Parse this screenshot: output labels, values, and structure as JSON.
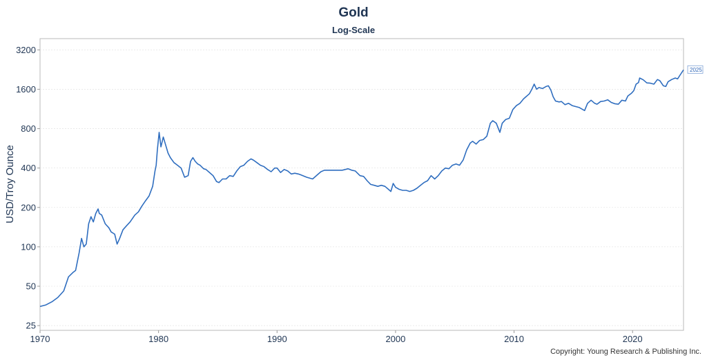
{
  "chart_data": {
    "type": "line",
    "title": "Gold",
    "subtitle": "Log-Scale",
    "xlabel": "",
    "ylabel": "USD/Troy Ounce",
    "y_scale": "log",
    "ylim": [
      23,
      3900
    ],
    "xlim": [
      1970,
      2024.3
    ],
    "y_ticks": [
      25,
      50,
      100,
      200,
      400,
      800,
      1600,
      3200
    ],
    "y_tick_labels": [
      "25",
      "50",
      "100",
      "200",
      "400",
      "800",
      "1600",
      "3200"
    ],
    "x_ticks": [
      1970,
      1980,
      1990,
      2000,
      2010,
      2020
    ],
    "x_tick_labels": [
      "1970",
      "1980",
      "1990",
      "2000",
      "2010",
      "2020"
    ],
    "grid": true,
    "end_label": "2025",
    "line_color": "#2e6dbf",
    "series": [
      {
        "x": [
          1970.0,
          1970.5,
          1971.0,
          1971.5,
          1972.0,
          1972.4,
          1972.8,
          1973.0,
          1973.3,
          1973.5,
          1973.7,
          1973.9,
          1974.1,
          1974.3,
          1974.5,
          1974.7,
          1974.9,
          1975.0,
          1975.2,
          1975.5,
          1975.8,
          1976.0,
          1976.3,
          1976.5,
          1976.7,
          1977.0,
          1977.3,
          1977.6,
          1978.0,
          1978.3,
          1978.6,
          1978.9,
          1979.2,
          1979.5,
          1979.7,
          1979.8,
          1979.9,
          1980.05,
          1980.2,
          1980.4,
          1980.6,
          1980.8,
          1981.0,
          1981.3,
          1981.6,
          1981.9,
          1982.2,
          1982.5,
          1982.7,
          1982.9,
          1983.1,
          1983.3,
          1983.5,
          1983.8,
          1984.0,
          1984.3,
          1984.6,
          1984.9,
          1985.1,
          1985.4,
          1985.7,
          1986.0,
          1986.3,
          1986.6,
          1986.9,
          1987.2,
          1987.5,
          1987.8,
          1988.0,
          1988.3,
          1988.6,
          1988.9,
          1989.2,
          1989.5,
          1989.8,
          1990.0,
          1990.3,
          1990.6,
          1990.9,
          1991.2,
          1991.5,
          1991.8,
          1992.0,
          1992.5,
          1993.0,
          1993.4,
          1993.7,
          1994.0,
          1994.5,
          1995.0,
          1995.5,
          1996.0,
          1996.3,
          1996.6,
          1997.0,
          1997.3,
          1997.6,
          1997.9,
          1998.2,
          1998.5,
          1998.8,
          1999.1,
          1999.4,
          1999.6,
          1999.8,
          2000.0,
          2000.3,
          2000.6,
          2000.9,
          2001.2,
          2001.5,
          2001.8,
          2002.1,
          2002.4,
          2002.7,
          2003.0,
          2003.3,
          2003.6,
          2003.9,
          2004.2,
          2004.5,
          2004.8,
          2005.1,
          2005.4,
          2005.7,
          2006.0,
          2006.3,
          2006.5,
          2006.8,
          2007.1,
          2007.4,
          2007.7,
          2008.0,
          2008.2,
          2008.5,
          2008.8,
          2009.0,
          2009.3,
          2009.6,
          2009.9,
          2010.2,
          2010.5,
          2010.8,
          2011.0,
          2011.3,
          2011.5,
          2011.7,
          2011.9,
          2012.1,
          2012.4,
          2012.7,
          2012.9,
          2013.1,
          2013.3,
          2013.5,
          2013.8,
          2014.0,
          2014.3,
          2014.6,
          2014.9,
          2015.2,
          2015.5,
          2015.8,
          2015.95,
          2016.2,
          2016.5,
          2016.8,
          2017.0,
          2017.3,
          2017.6,
          2017.9,
          2018.2,
          2018.5,
          2018.8,
          2019.1,
          2019.4,
          2019.6,
          2019.9,
          2020.1,
          2020.3,
          2020.5,
          2020.6,
          2020.9,
          2021.2,
          2021.5,
          2021.8,
          2022.1,
          2022.3,
          2022.6,
          2022.8,
          2023.0,
          2023.3,
          2023.6,
          2023.8,
          2024.0,
          2024.3
        ],
        "y": [
          35,
          36,
          38,
          41,
          46,
          59,
          64,
          66,
          90,
          116,
          100,
          105,
          150,
          170,
          155,
          180,
          195,
          180,
          175,
          150,
          140,
          130,
          125,
          105,
          115,
          135,
          145,
          155,
          175,
          185,
          205,
          225,
          245,
          290,
          380,
          420,
          550,
          750,
          580,
          690,
          600,
          520,
          480,
          440,
          420,
          400,
          340,
          350,
          450,
          480,
          450,
          430,
          420,
          395,
          390,
          370,
          350,
          315,
          310,
          330,
          330,
          350,
          345,
          380,
          410,
          420,
          450,
          470,
          460,
          440,
          420,
          410,
          390,
          375,
          400,
          400,
          370,
          390,
          380,
          360,
          365,
          360,
          355,
          340,
          330,
          355,
          375,
          385,
          385,
          385,
          385,
          395,
          385,
          380,
          350,
          345,
          320,
          300,
          295,
          290,
          295,
          290,
          275,
          265,
          305,
          285,
          275,
          270,
          270,
          265,
          270,
          280,
          295,
          310,
          320,
          350,
          330,
          350,
          380,
          400,
          395,
          420,
          430,
          420,
          460,
          550,
          620,
          640,
          610,
          650,
          660,
          700,
          880,
          920,
          880,
          750,
          880,
          940,
          960,
          1120,
          1200,
          1250,
          1350,
          1400,
          1480,
          1600,
          1750,
          1600,
          1650,
          1620,
          1680,
          1700,
          1580,
          1400,
          1300,
          1280,
          1290,
          1220,
          1250,
          1200,
          1180,
          1160,
          1120,
          1100,
          1250,
          1320,
          1250,
          1230,
          1290,
          1300,
          1330,
          1270,
          1240,
          1230,
          1320,
          1300,
          1420,
          1490,
          1560,
          1750,
          1800,
          1950,
          1890,
          1790,
          1780,
          1750,
          1900,
          1860,
          1700,
          1680,
          1830,
          1900,
          1950,
          1920,
          2050,
          2250
        ]
      }
    ]
  },
  "copyright": "Copyright: Young Research & Publishing Inc."
}
